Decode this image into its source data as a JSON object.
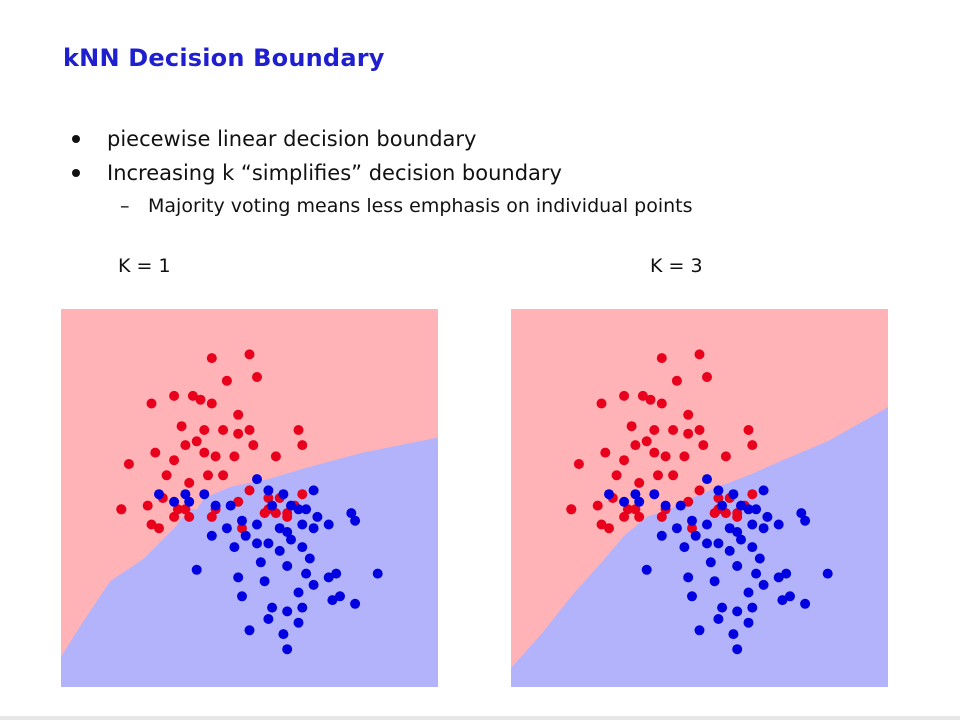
{
  "slide": {
    "title": "kNN Decision Boundary",
    "bullets": [
      "piecewise linear decision boundary",
      "Increasing k “simplifies” decision boundary"
    ],
    "sub_bullet": "Majority voting means less emphasis on individual points",
    "dash": "–"
  },
  "colors": {
    "title": "#1f1fcf",
    "region_red": "#ffb3b7",
    "region_blue": "#b3b3fc",
    "point_red": "#e8001c",
    "point_blue": "#0000e0"
  },
  "chart_data": [
    {
      "type": "scatter",
      "title": "K = 1",
      "xlim": [
        0,
        1
      ],
      "ylim": [
        0,
        1
      ],
      "grid": false,
      "boundary": [
        [
          0,
          0.08
        ],
        [
          0.05,
          0.16
        ],
        [
          0.13,
          0.28
        ],
        [
          0.22,
          0.34
        ],
        [
          0.3,
          0.42
        ],
        [
          0.34,
          0.47
        ],
        [
          0.36,
          0.47
        ],
        [
          0.38,
          0.5
        ],
        [
          0.45,
          0.53
        ],
        [
          0.55,
          0.55
        ],
        [
          0.65,
          0.58
        ],
        [
          0.8,
          0.62
        ],
        [
          1,
          0.66
        ]
      ],
      "series": [
        {
          "points": [
            [
              0.4,
              0.87
            ],
            [
              0.5,
              0.88
            ],
            [
              0.44,
              0.81
            ],
            [
              0.52,
              0.82
            ],
            [
              0.24,
              0.75
            ],
            [
              0.3,
              0.77
            ],
            [
              0.35,
              0.77
            ],
            [
              0.37,
              0.76
            ],
            [
              0.4,
              0.75
            ],
            [
              0.47,
              0.72
            ],
            [
              0.32,
              0.69
            ],
            [
              0.38,
              0.68
            ],
            [
              0.43,
              0.68
            ],
            [
              0.47,
              0.67
            ],
            [
              0.5,
              0.68
            ],
            [
              0.18,
              0.59
            ],
            [
              0.25,
              0.62
            ],
            [
              0.3,
              0.6
            ],
            [
              0.33,
              0.64
            ],
            [
              0.36,
              0.65
            ],
            [
              0.38,
              0.62
            ],
            [
              0.41,
              0.61
            ],
            [
              0.46,
              0.61
            ],
            [
              0.51,
              0.64
            ],
            [
              0.57,
              0.61
            ],
            [
              0.63,
              0.68
            ],
            [
              0.64,
              0.64
            ],
            [
              0.28,
              0.56
            ],
            [
              0.34,
              0.54
            ],
            [
              0.39,
              0.56
            ],
            [
              0.43,
              0.56
            ],
            [
              0.27,
              0.5
            ],
            [
              0.23,
              0.48
            ],
            [
              0.31,
              0.47
            ],
            [
              0.16,
              0.47
            ],
            [
              0.24,
              0.43
            ],
            [
              0.3,
              0.45
            ],
            [
              0.34,
              0.45
            ],
            [
              0.4,
              0.45
            ],
            [
              0.47,
              0.49
            ],
            [
              0.5,
              0.52
            ],
            [
              0.55,
              0.47
            ],
            [
              0.58,
              0.5
            ],
            [
              0.64,
              0.51
            ],
            [
              0.62,
              0.48
            ],
            [
              0.26,
              0.42
            ],
            [
              0.48,
              0.42
            ],
            [
              0.54,
              0.46
            ],
            [
              0.57,
              0.46
            ],
            [
              0.6,
              0.46
            ],
            [
              0.16,
              0.47
            ],
            [
              0.33,
              0.47
            ],
            [
              0.41,
              0.47
            ],
            [
              0.55,
              0.5
            ],
            [
              0.6,
              0.45
            ]
          ]
        },
        {
          "points": [
            [
              0.33,
              0.51
            ],
            [
              0.38,
              0.51
            ],
            [
              0.3,
              0.49
            ],
            [
              0.34,
              0.49
            ],
            [
              0.26,
              0.51
            ],
            [
              0.41,
              0.48
            ],
            [
              0.45,
              0.48
            ],
            [
              0.52,
              0.55
            ],
            [
              0.55,
              0.52
            ],
            [
              0.59,
              0.51
            ],
            [
              0.56,
              0.48
            ],
            [
              0.61,
              0.48
            ],
            [
              0.67,
              0.52
            ],
            [
              0.63,
              0.47
            ],
            [
              0.65,
              0.47
            ],
            [
              0.68,
              0.45
            ],
            [
              0.48,
              0.44
            ],
            [
              0.52,
              0.43
            ],
            [
              0.44,
              0.42
            ],
            [
              0.49,
              0.4
            ],
            [
              0.58,
              0.42
            ],
            [
              0.6,
              0.41
            ],
            [
              0.61,
              0.39
            ],
            [
              0.64,
              0.43
            ],
            [
              0.67,
              0.42
            ],
            [
              0.71,
              0.43
            ],
            [
              0.77,
              0.46
            ],
            [
              0.78,
              0.44
            ],
            [
              0.4,
              0.4
            ],
            [
              0.46,
              0.37
            ],
            [
              0.52,
              0.38
            ],
            [
              0.55,
              0.38
            ],
            [
              0.58,
              0.36
            ],
            [
              0.64,
              0.37
            ],
            [
              0.66,
              0.34
            ],
            [
              0.65,
              0.3
            ],
            [
              0.53,
              0.33
            ],
            [
              0.54,
              0.28
            ],
            [
              0.47,
              0.29
            ],
            [
              0.36,
              0.31
            ],
            [
              0.71,
              0.29
            ],
            [
              0.73,
              0.3
            ],
            [
              0.48,
              0.24
            ],
            [
              0.63,
              0.25
            ],
            [
              0.67,
              0.27
            ],
            [
              0.72,
              0.23
            ],
            [
              0.74,
              0.24
            ],
            [
              0.78,
              0.22
            ],
            [
              0.56,
              0.21
            ],
            [
              0.64,
              0.21
            ],
            [
              0.6,
              0.2
            ],
            [
              0.55,
              0.18
            ],
            [
              0.63,
              0.17
            ],
            [
              0.5,
              0.15
            ],
            [
              0.59,
              0.14
            ],
            [
              0.6,
              0.1
            ],
            [
              0.84,
              0.3
            ],
            [
              0.6,
              0.32
            ]
          ]
        }
      ]
    },
    {
      "type": "scatter",
      "title": "K = 3",
      "xlim": [
        0,
        1
      ],
      "ylim": [
        0,
        1
      ],
      "grid": false,
      "boundary": [
        [
          0,
          0.05
        ],
        [
          0.08,
          0.14
        ],
        [
          0.16,
          0.24
        ],
        [
          0.24,
          0.33
        ],
        [
          0.3,
          0.4
        ],
        [
          0.36,
          0.45
        ],
        [
          0.42,
          0.47
        ],
        [
          0.48,
          0.5
        ],
        [
          0.55,
          0.53
        ],
        [
          0.63,
          0.56
        ],
        [
          0.72,
          0.6
        ],
        [
          0.84,
          0.65
        ],
        [
          1,
          0.74
        ]
      ],
      "series": [
        {
          "points": [
            [
              0.4,
              0.87
            ],
            [
              0.5,
              0.88
            ],
            [
              0.44,
              0.81
            ],
            [
              0.52,
              0.82
            ],
            [
              0.24,
              0.75
            ],
            [
              0.3,
              0.77
            ],
            [
              0.35,
              0.77
            ],
            [
              0.37,
              0.76
            ],
            [
              0.4,
              0.75
            ],
            [
              0.47,
              0.72
            ],
            [
              0.32,
              0.69
            ],
            [
              0.38,
              0.68
            ],
            [
              0.43,
              0.68
            ],
            [
              0.47,
              0.67
            ],
            [
              0.5,
              0.68
            ],
            [
              0.18,
              0.59
            ],
            [
              0.25,
              0.62
            ],
            [
              0.3,
              0.6
            ],
            [
              0.33,
              0.64
            ],
            [
              0.36,
              0.65
            ],
            [
              0.38,
              0.62
            ],
            [
              0.41,
              0.61
            ],
            [
              0.46,
              0.61
            ],
            [
              0.51,
              0.64
            ],
            [
              0.57,
              0.61
            ],
            [
              0.63,
              0.68
            ],
            [
              0.64,
              0.64
            ],
            [
              0.28,
              0.56
            ],
            [
              0.34,
              0.54
            ],
            [
              0.39,
              0.56
            ],
            [
              0.43,
              0.56
            ],
            [
              0.27,
              0.5
            ],
            [
              0.23,
              0.48
            ],
            [
              0.31,
              0.47
            ],
            [
              0.16,
              0.47
            ],
            [
              0.24,
              0.43
            ],
            [
              0.3,
              0.45
            ],
            [
              0.34,
              0.45
            ],
            [
              0.4,
              0.45
            ],
            [
              0.47,
              0.49
            ],
            [
              0.5,
              0.52
            ],
            [
              0.55,
              0.47
            ],
            [
              0.58,
              0.5
            ],
            [
              0.64,
              0.51
            ],
            [
              0.62,
              0.48
            ],
            [
              0.26,
              0.42
            ],
            [
              0.48,
              0.42
            ],
            [
              0.54,
              0.46
            ],
            [
              0.57,
              0.46
            ],
            [
              0.6,
              0.46
            ],
            [
              0.16,
              0.47
            ],
            [
              0.33,
              0.47
            ],
            [
              0.41,
              0.47
            ],
            [
              0.55,
              0.5
            ],
            [
              0.6,
              0.45
            ]
          ]
        },
        {
          "points": [
            [
              0.33,
              0.51
            ],
            [
              0.38,
              0.51
            ],
            [
              0.3,
              0.49
            ],
            [
              0.34,
              0.49
            ],
            [
              0.26,
              0.51
            ],
            [
              0.41,
              0.48
            ],
            [
              0.45,
              0.48
            ],
            [
              0.52,
              0.55
            ],
            [
              0.55,
              0.52
            ],
            [
              0.59,
              0.51
            ],
            [
              0.56,
              0.48
            ],
            [
              0.61,
              0.48
            ],
            [
              0.67,
              0.52
            ],
            [
              0.63,
              0.47
            ],
            [
              0.65,
              0.47
            ],
            [
              0.68,
              0.45
            ],
            [
              0.48,
              0.44
            ],
            [
              0.52,
              0.43
            ],
            [
              0.44,
              0.42
            ],
            [
              0.49,
              0.4
            ],
            [
              0.58,
              0.42
            ],
            [
              0.6,
              0.41
            ],
            [
              0.61,
              0.39
            ],
            [
              0.64,
              0.43
            ],
            [
              0.67,
              0.42
            ],
            [
              0.71,
              0.43
            ],
            [
              0.77,
              0.46
            ],
            [
              0.78,
              0.44
            ],
            [
              0.4,
              0.4
            ],
            [
              0.46,
              0.37
            ],
            [
              0.52,
              0.38
            ],
            [
              0.55,
              0.38
            ],
            [
              0.58,
              0.36
            ],
            [
              0.64,
              0.37
            ],
            [
              0.66,
              0.34
            ],
            [
              0.65,
              0.3
            ],
            [
              0.53,
              0.33
            ],
            [
              0.54,
              0.28
            ],
            [
              0.47,
              0.29
            ],
            [
              0.36,
              0.31
            ],
            [
              0.71,
              0.29
            ],
            [
              0.73,
              0.3
            ],
            [
              0.48,
              0.24
            ],
            [
              0.63,
              0.25
            ],
            [
              0.67,
              0.27
            ],
            [
              0.72,
              0.23
            ],
            [
              0.74,
              0.24
            ],
            [
              0.78,
              0.22
            ],
            [
              0.56,
              0.21
            ],
            [
              0.64,
              0.21
            ],
            [
              0.6,
              0.2
            ],
            [
              0.55,
              0.18
            ],
            [
              0.63,
              0.17
            ],
            [
              0.5,
              0.15
            ],
            [
              0.59,
              0.14
            ],
            [
              0.6,
              0.1
            ],
            [
              0.84,
              0.3
            ],
            [
              0.6,
              0.32
            ]
          ]
        }
      ]
    }
  ]
}
